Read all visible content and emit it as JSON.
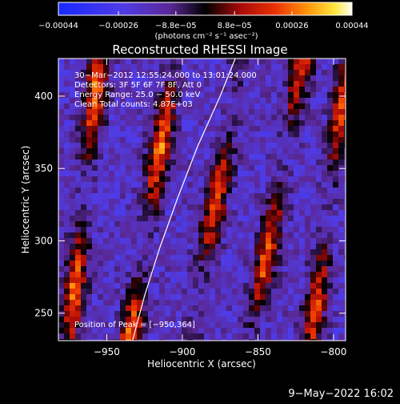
{
  "chart_data": {
    "type": "heatmap",
    "title": "Reconstructed RHESSI Image",
    "xlabel": "Heliocentric X (arcsec)",
    "ylabel": "Heliocentric Y (arcsec)",
    "xlim": [
      -982,
      -792
    ],
    "ylim": [
      231,
      426
    ],
    "xticks": [
      -950,
      -900,
      -850,
      -800
    ],
    "xtick_labels": [
      "−950",
      "−900",
      "−850",
      "−800"
    ],
    "yticks": [
      250,
      300,
      350,
      400
    ],
    "ytick_labels": [
      "250",
      "300",
      "350",
      "400"
    ],
    "colorbar": {
      "min": -0.00044,
      "max": 0.00044,
      "tick_values": [
        -0.00044,
        -0.00026,
        -8.8e-05,
        8.8e-05,
        0.00026,
        0.00044
      ],
      "tick_labels": [
        "−0.00044",
        "−0.00026",
        "−8.8e−05",
        "8.8e−05",
        "0.00026",
        "0.00044"
      ],
      "units_text": "(photons cm⁻² s⁻¹ asec⁻²)"
    },
    "annotations": [
      "30−Mar−2012 12:55:24.000 to 13:01:24.000",
      "Detectors: 3F 5F 6F 7F 8F, Att 0",
      "Energy Range: 25.0 − 50.0 keV",
      "Clean     Total counts: 4.87E+03"
    ],
    "peak_label": "Position of Peak = [−950,364]",
    "limb_curve": [
      [
        -933,
        231
      ],
      [
        -925,
        262
      ],
      [
        -915,
        295
      ],
      [
        -903,
        330
      ],
      [
        -890,
        365
      ],
      [
        -875,
        400
      ],
      [
        -865,
        426
      ]
    ],
    "stripes": [
      {
        "x_at_y231": -975,
        "x_at_y426": -955,
        "peak": 0.00042
      },
      {
        "x_at_y231": -935,
        "x_at_y426": -905,
        "peak": 0.00044
      },
      {
        "x_at_y231": -895,
        "x_at_y426": -860,
        "peak": 0.00038
      },
      {
        "x_at_y231": -855,
        "x_at_y426": -820,
        "peak": 0.0004
      },
      {
        "x_at_y231": -815,
        "x_at_y426": -790,
        "peak": 0.00038
      }
    ],
    "grid": false
  },
  "footer": {
    "timestamp": "9−May−2022 16:02"
  }
}
